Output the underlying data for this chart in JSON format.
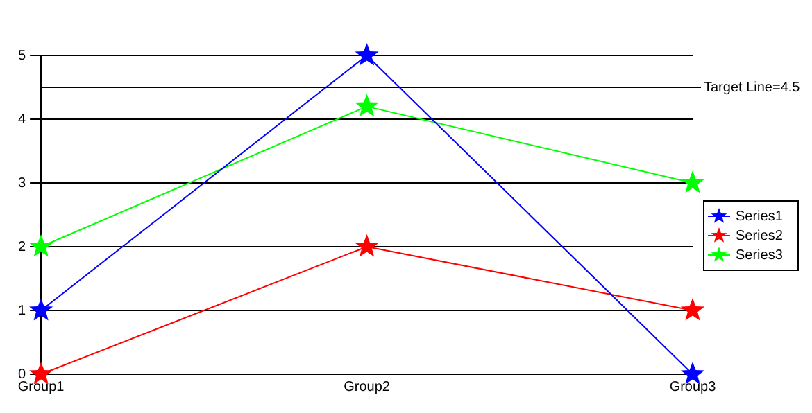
{
  "chart_data": {
    "type": "line",
    "categories": [
      "Group1",
      "Group2",
      "Group3"
    ],
    "series": [
      {
        "name": "Series1",
        "color": "#0000ff",
        "values": [
          1,
          5,
          0
        ]
      },
      {
        "name": "Series2",
        "color": "#ff0000",
        "values": [
          0,
          2,
          1
        ]
      },
      {
        "name": "Series3",
        "color": "#00ff00",
        "values": [
          2,
          4.2,
          3
        ]
      }
    ],
    "ylim": [
      0,
      5
    ],
    "yticks": [
      0,
      1,
      2,
      3,
      4,
      5
    ],
    "grid": "y",
    "legend": "right",
    "marker": "star",
    "line_style": "solid",
    "ref_lines": [
      {
        "axis": "y",
        "value": 4.5,
        "label": "Target Line=4.5",
        "color": "#000000"
      }
    ]
  }
}
